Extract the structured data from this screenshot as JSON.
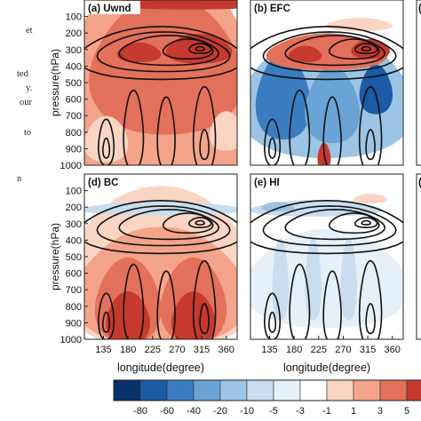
{
  "left_text_fragments": [
    "et",
    "ted",
    "y.",
    "our",
    "to",
    "n"
  ],
  "chart_data": [
    {
      "type": "heatmap",
      "panel_label": "(a) Uwnd",
      "ylabel": "pressure(hPa)",
      "xlabel": "",
      "y_ticks": [
        100,
        200,
        300,
        400,
        500,
        600,
        700,
        800,
        900,
        1000
      ],
      "x_ticks": [],
      "ylim": [
        1000,
        0
      ],
      "xlim": [
        100,
        380
      ],
      "field": "mostly strong positive (red), deepest near 300 hPa around 300-330°E",
      "contours": "black closed contours of zonal wind, maximum near 300 hPa, 315°E"
    },
    {
      "type": "heatmap",
      "panel_label": "(b) EFC",
      "ylabel": "",
      "xlabel": "",
      "y_ticks": [],
      "x_ticks": [],
      "ylim": [
        1000,
        0
      ],
      "xlim": [
        100,
        380
      ],
      "field": "positive (red) cores near 300 hPa at ~200°E and ~315°E; negative (blue) below 400 hPa",
      "contours": "black closed contours, maximum near 300 hPa, 315°E"
    },
    {
      "type": "heatmap",
      "panel_label": "(d) BC",
      "ylabel": "pressure(hPa)",
      "xlabel": "longitude(degree)",
      "y_ticks": [
        100,
        200,
        300,
        400,
        500,
        600,
        700,
        800,
        900,
        1000
      ],
      "x_ticks": [
        135,
        180,
        225,
        270,
        315,
        360
      ],
      "ylim": [
        1000,
        0
      ],
      "xlim": [
        100,
        380
      ],
      "field": "positive (red) increasing downward, strongest at 800-1000 hPa near 180°E and 300°E; weak blue near 200 hPa",
      "contours": "black closed contours, maximum near 300 hPa, 315°E"
    },
    {
      "type": "heatmap",
      "panel_label": "(e) HI",
      "ylabel": "",
      "xlabel": "longitude(degree)",
      "y_ticks": [],
      "x_ticks": [
        135,
        180,
        225,
        270,
        315,
        360
      ],
      "ylim": [
        1000,
        0
      ],
      "xlim": [
        100,
        380
      ],
      "field": "weak values; light blue streaks in lower troposphere, blue near 200 hPa",
      "contours": "black closed contours, maximum near 300 hPa, 315°E"
    }
  ],
  "clipped_panel_labels": [
    "(c",
    "(f"
  ],
  "colorbar": {
    "tick_labels": [
      "-80",
      "-60",
      "-40",
      "-20",
      "-10",
      "-5",
      "-3",
      "-1",
      "1",
      "3",
      "5"
    ],
    "colors": [
      "#08306b",
      "#1c5ba6",
      "#3a7cc0",
      "#6aa4d6",
      "#9cc4e4",
      "#c8ddf0",
      "#e6f0f9",
      "#ffffff",
      "#fbd5c4",
      "#f3a48a",
      "#e3705a",
      "#c6392f"
    ]
  }
}
